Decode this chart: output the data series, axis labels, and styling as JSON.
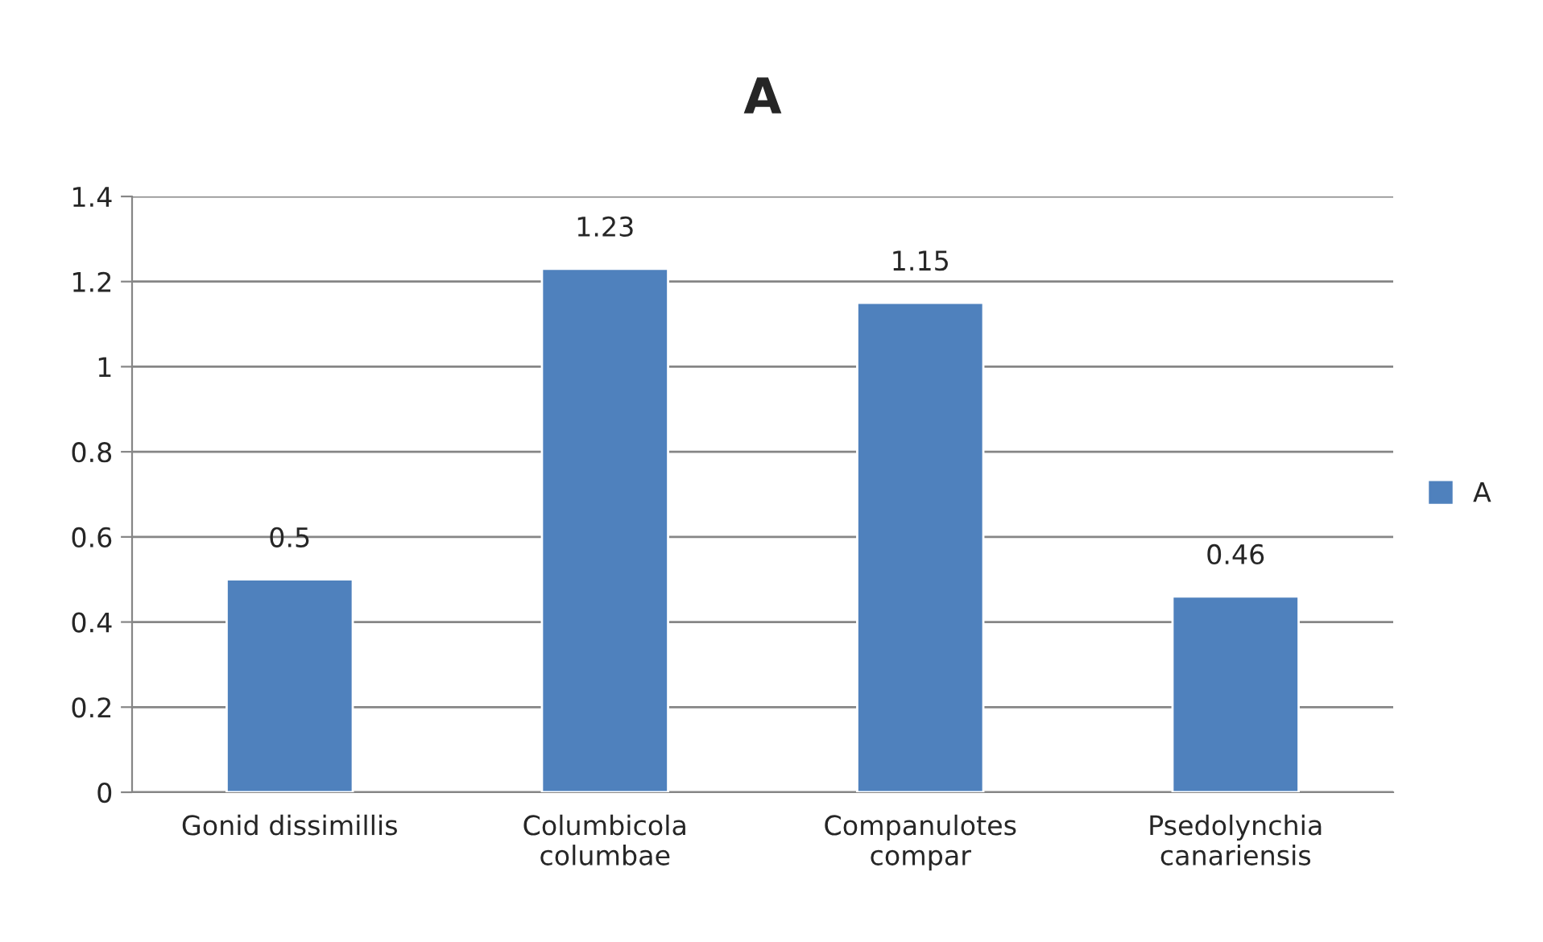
{
  "chart_data": {
    "type": "bar",
    "title": "A",
    "categories": [
      "Gonid dissimillis",
      "Columbicola\ncolumbae",
      "Companulotes\ncompar",
      "Psedolynchia\ncanariensis"
    ],
    "series": [
      {
        "name": "A",
        "color": "#4f81bd",
        "values": [
          0.5,
          1.23,
          1.15,
          0.46
        ]
      }
    ],
    "ylim": [
      0,
      1.4
    ],
    "yticks": [
      0,
      0.2,
      0.4,
      0.6,
      0.8,
      1,
      1.2,
      1.4
    ],
    "grid": "y",
    "legend": "right",
    "data_labels": true
  }
}
